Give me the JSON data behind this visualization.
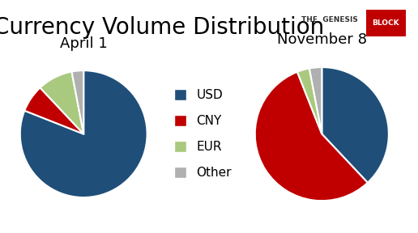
{
  "title": "Currency Volume Distribution",
  "subtitle_the": "THE  GENESIS",
  "subtitle_block": "BLOCK",
  "chart1_label": "April 1",
  "chart2_label": "November 8",
  "categories": [
    "USD",
    "CNY",
    "EUR",
    "Other"
  ],
  "colors": [
    "#1f4e79",
    "#c00000",
    "#a9c97e",
    "#b0b0b0"
  ],
  "pie1_values": [
    81,
    7,
    9,
    3
  ],
  "pie2_values": [
    38,
    56,
    3,
    3
  ],
  "pie1_startangle": 90,
  "pie2_startangle": 90,
  "background_color": "#ffffff",
  "title_fontsize": 20,
  "label_fontsize": 13,
  "legend_fontsize": 11
}
